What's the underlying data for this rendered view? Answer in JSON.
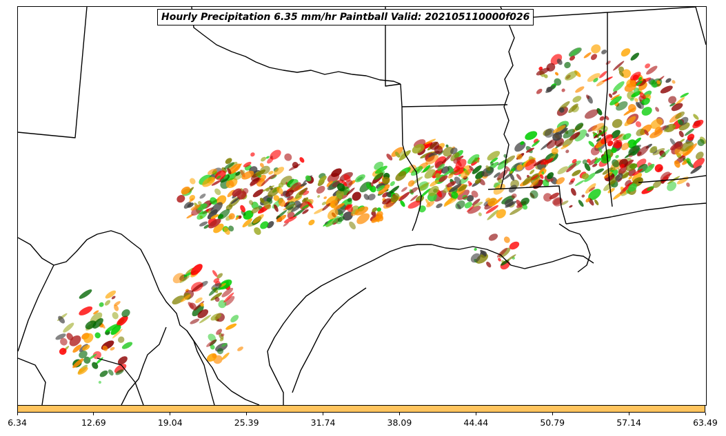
{
  "title": "Hourly Precipitation 6.35 mm/hr Paintball Valid: 202105110000f026",
  "colorbar": {
    "ticks": [
      "6.34",
      "12.69",
      "19.04",
      "25.39",
      "31.74",
      "38.09",
      "44.44",
      "50.79",
      "57.14",
      "63.49"
    ],
    "fill_color": "#ffc45e"
  },
  "colors": {
    "boundary": "#000000",
    "paintball_palette": [
      "#ff0000",
      "#ff8c00",
      "#ffa500",
      "#8b0000",
      "#b22222",
      "#00cc00",
      "#32cd32",
      "#006400",
      "#808000",
      "#9aa71d",
      "#404040"
    ]
  }
}
